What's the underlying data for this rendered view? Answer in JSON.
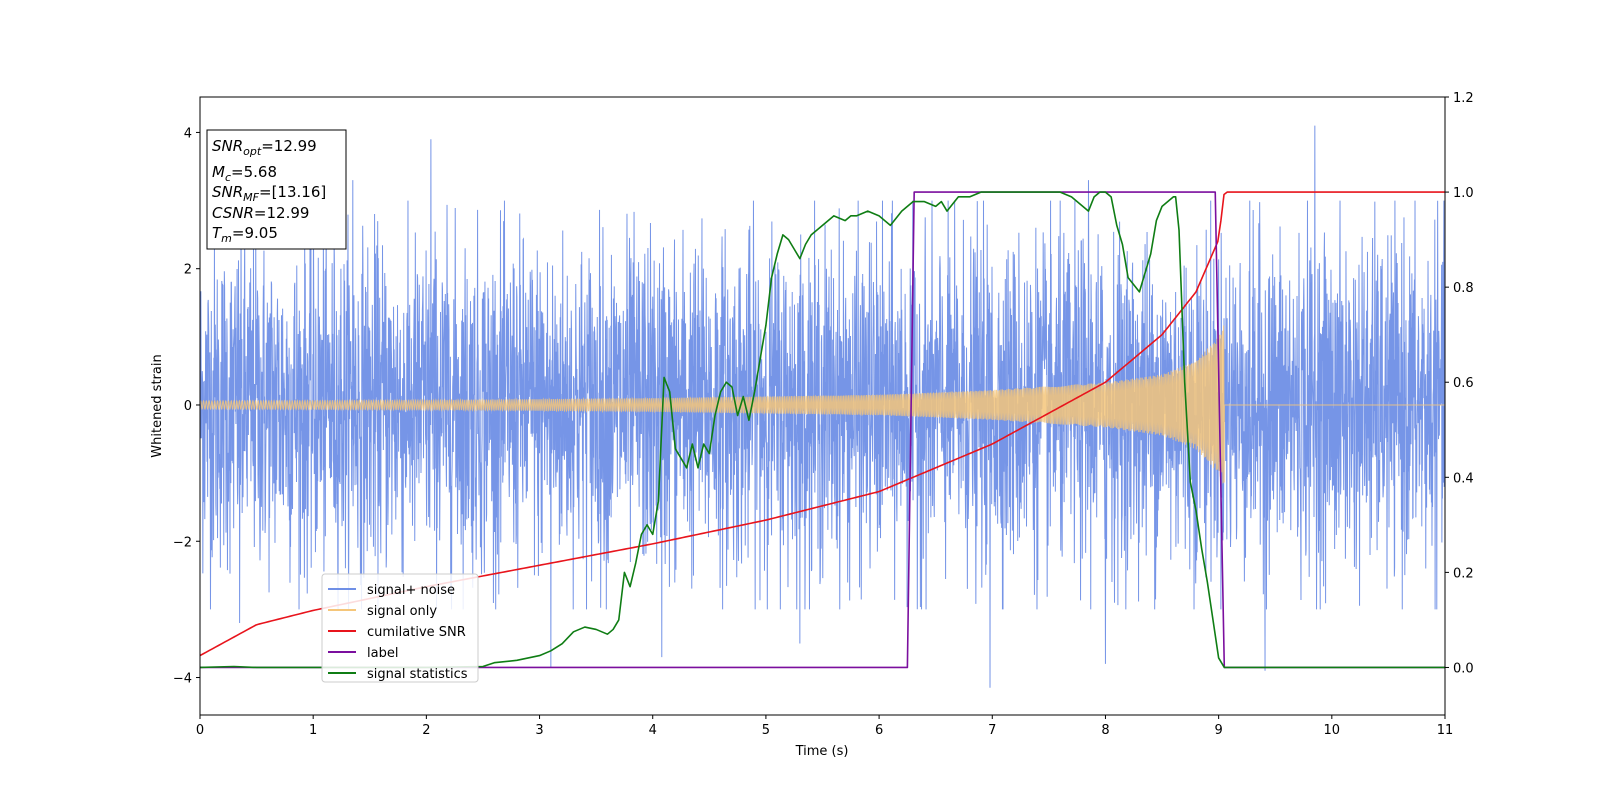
{
  "chart_data": {
    "type": "line",
    "xlabel": "Time (s)",
    "ylabel": "Whitened strain",
    "xlim": [
      0,
      11
    ],
    "ylim_left": [
      -4.55,
      4.52
    ],
    "ylim_right": [
      -0.1,
      1.2
    ],
    "x_ticks": [
      "0",
      "1",
      "2",
      "3",
      "4",
      "5",
      "6",
      "7",
      "8",
      "9",
      "10",
      "11"
    ],
    "y_ticks_left": [
      "−4",
      "−2",
      "0",
      "2",
      "4"
    ],
    "y_ticks_right": [
      "0.0",
      "0.2",
      "0.4",
      "0.6",
      "0.8",
      "1.0",
      "1.2"
    ],
    "grid": false,
    "legend_position": "lower-left",
    "legend": [
      {
        "label": "signal+ noise",
        "color": "#6f8fe6"
      },
      {
        "label": "signal only",
        "color": "#f5c67a"
      },
      {
        "label": "cumilative SNR",
        "color": "#e8141c"
      },
      {
        "label": "label",
        "color": "#7b0f9e"
      },
      {
        "label": "signal statistics",
        "color": "#0f7d14"
      }
    ],
    "info_box": {
      "snr_opt": {
        "name": "SNR",
        "sub": "opt",
        "value": "=12.99"
      },
      "mc": {
        "name": "M",
        "sub": "c",
        "value": "=5.68"
      },
      "snr_mf": {
        "name": "SNR",
        "sub": "MF",
        "value": "=[13.16]"
      },
      "csnr": {
        "name": "CSNR",
        "value": "=12.99"
      },
      "tm": {
        "name": "T",
        "sub": "m",
        "value": "=9.05"
      }
    },
    "series": [
      {
        "name": "signal+ noise",
        "axis": "left",
        "color": "#6f8fe6",
        "noise_sigma": 1.2,
        "x_range": [
          0,
          11
        ],
        "peaks": [
          [
            2.04,
            3.9
          ],
          [
            6.98,
            3.6
          ],
          [
            9.85,
            4.1
          ],
          [
            6.98,
            -4.15
          ],
          [
            9.41,
            -3.9
          ],
          [
            3.1,
            -3.85
          ],
          [
            4.08,
            -3.7
          ],
          [
            8.0,
            -3.8
          ],
          [
            0.35,
            -3.2
          ],
          [
            5.3,
            -3.5
          ],
          [
            7.85,
            3.3
          ],
          [
            1.35,
            3.3
          ]
        ]
      },
      {
        "name": "signal only",
        "axis": "left",
        "color": "#f5c67a",
        "amplitude_envelope": {
          "x": [
            0,
            2,
            4,
            6,
            7,
            8,
            8.5,
            8.8,
            9.0,
            9.05
          ],
          "y": [
            0.06,
            0.07,
            0.1,
            0.15,
            0.22,
            0.33,
            0.45,
            0.65,
            1.0,
            1.2
          ]
        },
        "zero_after": 9.05
      },
      {
        "name": "cumilative SNR",
        "axis": "right",
        "color": "#e8141c",
        "x": [
          0,
          0.5,
          1,
          2,
          3,
          4,
          5,
          6,
          7,
          8,
          8.5,
          8.8,
          9.0,
          9.05,
          11
        ],
        "y": [
          0.025,
          0.09,
          0.12,
          0.17,
          0.215,
          0.26,
          0.31,
          0.37,
          0.47,
          0.6,
          0.7,
          0.79,
          0.9,
          1.0,
          1.0
        ]
      },
      {
        "name": "label",
        "axis": "right",
        "color": "#7b0f9e",
        "x": [
          0,
          6.25,
          6.31,
          8.97,
          9.05,
          11
        ],
        "y": [
          0.0,
          0.0,
          1.0,
          1.0,
          0.0,
          0.0
        ]
      },
      {
        "name": "signal statistics",
        "axis": "right",
        "color": "#0f7d14",
        "x": [
          0,
          0.3,
          0.5,
          1.0,
          1.5,
          2.0,
          2.5,
          2.6,
          2.8,
          3.0,
          3.1,
          3.2,
          3.3,
          3.4,
          3.5,
          3.6,
          3.65,
          3.7,
          3.75,
          3.8,
          3.85,
          3.9,
          3.95,
          4.0,
          4.05,
          4.1,
          4.15,
          4.2,
          4.3,
          4.35,
          4.4,
          4.45,
          4.5,
          4.55,
          4.6,
          4.65,
          4.7,
          4.75,
          4.8,
          4.85,
          4.9,
          4.95,
          5.0,
          5.05,
          5.1,
          5.15,
          5.2,
          5.25,
          5.3,
          5.35,
          5.4,
          5.5,
          5.6,
          5.7,
          5.75,
          5.8,
          5.9,
          6.0,
          6.1,
          6.2,
          6.3,
          6.4,
          6.5,
          6.55,
          6.6,
          6.7,
          6.8,
          6.9,
          7.0,
          7.2,
          7.4,
          7.6,
          7.7,
          7.8,
          7.85,
          7.9,
          7.95,
          8.0,
          8.05,
          8.1,
          8.15,
          8.2,
          8.3,
          8.35,
          8.4,
          8.45,
          8.5,
          8.55,
          8.6,
          8.62,
          8.65,
          8.7,
          8.75,
          8.8,
          8.85,
          8.9,
          8.95,
          9.0,
          9.05,
          9.5,
          11
        ],
        "y": [
          0.0,
          0.002,
          0.0,
          0.0,
          0.0,
          0.0,
          0.002,
          0.01,
          0.015,
          0.025,
          0.035,
          0.05,
          0.075,
          0.085,
          0.08,
          0.07,
          0.08,
          0.1,
          0.2,
          0.17,
          0.22,
          0.28,
          0.3,
          0.28,
          0.35,
          0.61,
          0.58,
          0.46,
          0.42,
          0.47,
          0.42,
          0.47,
          0.45,
          0.53,
          0.58,
          0.6,
          0.59,
          0.53,
          0.57,
          0.52,
          0.58,
          0.65,
          0.72,
          0.82,
          0.87,
          0.91,
          0.9,
          0.88,
          0.86,
          0.89,
          0.91,
          0.93,
          0.95,
          0.94,
          0.95,
          0.95,
          0.96,
          0.95,
          0.93,
          0.96,
          0.98,
          0.98,
          0.97,
          0.98,
          0.96,
          0.99,
          0.99,
          1.0,
          1.0,
          1.0,
          1.0,
          1.0,
          0.99,
          0.97,
          0.96,
          0.99,
          1.0,
          1.0,
          0.99,
          0.93,
          0.89,
          0.82,
          0.79,
          0.83,
          0.87,
          0.94,
          0.97,
          0.98,
          0.99,
          0.99,
          0.92,
          0.6,
          0.39,
          0.33,
          0.25,
          0.18,
          0.1,
          0.02,
          0.0,
          0.0,
          0.0
        ]
      }
    ]
  }
}
